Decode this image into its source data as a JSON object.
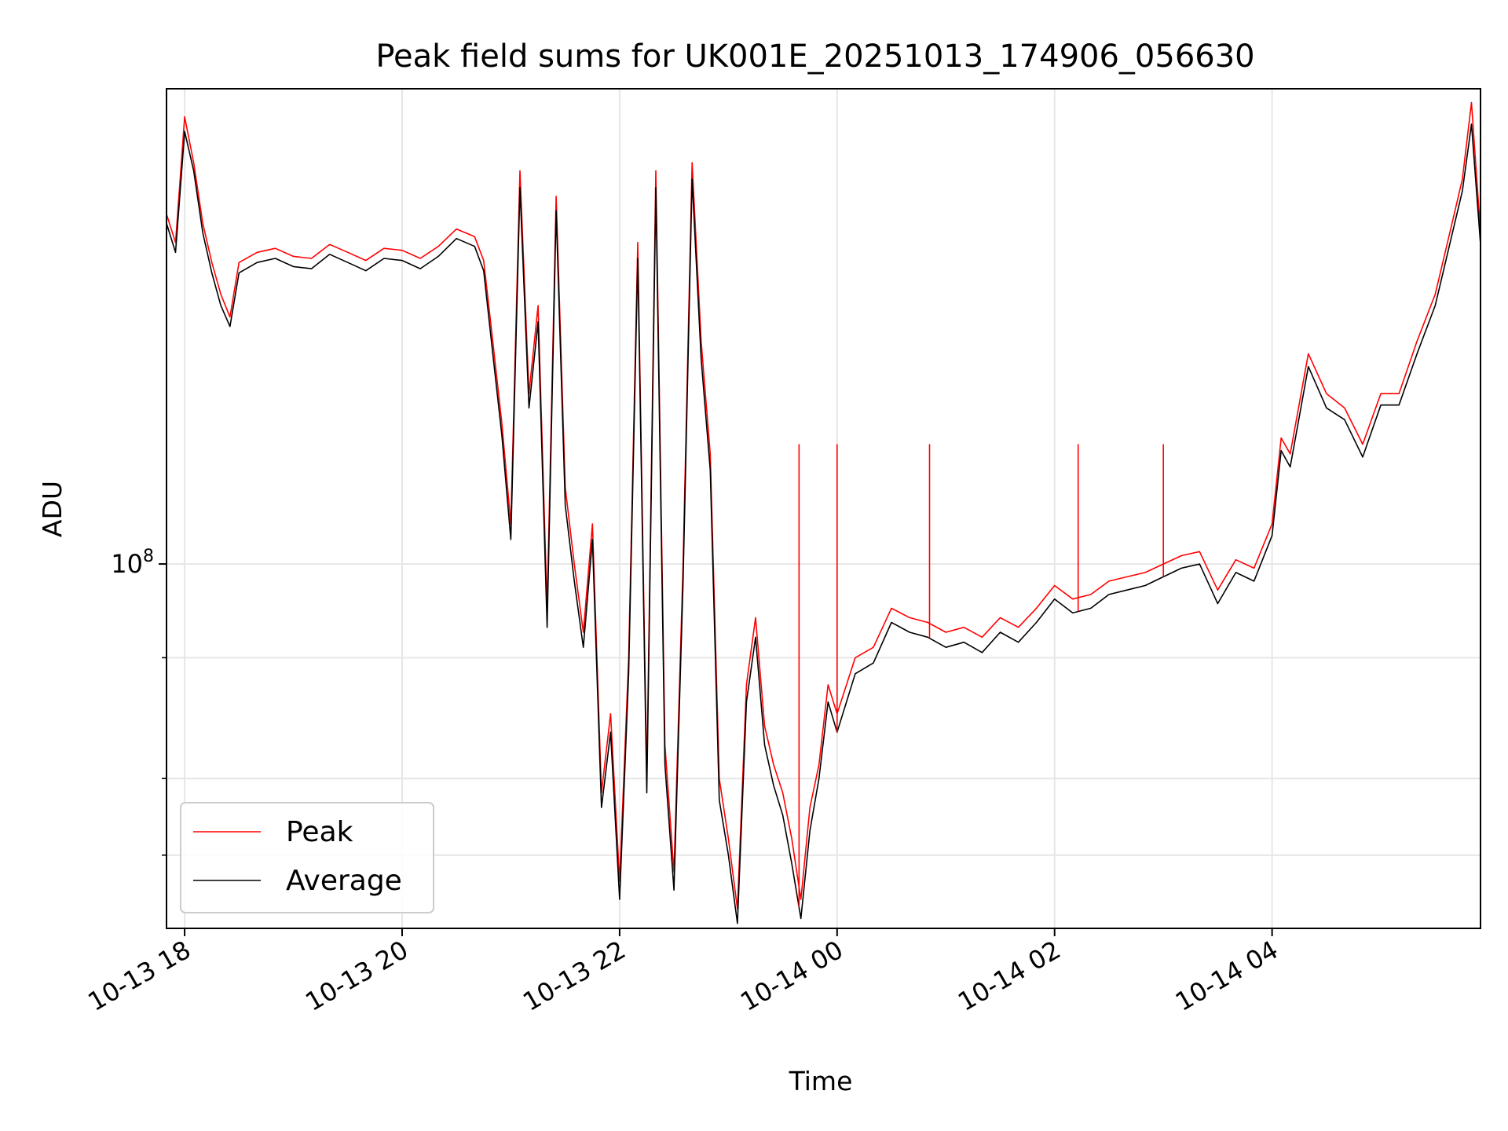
{
  "chart_data": {
    "type": "line",
    "title": "Peak field sums for UK001E_20251013_174906_056630",
    "xlabel": "Time",
    "ylabel": "ADU",
    "yscale": "log",
    "xlim": [
      "2025-10-13 17:50",
      "2025-10-14 05:55"
    ],
    "ylim": [
      42000000,
      310000000
    ],
    "grid": true,
    "legend_position": "lower-left",
    "x_tick_labels": [
      "10-13 18",
      "10-13 20",
      "10-13 22",
      "10-14 00",
      "10-14 02",
      "10-14 04"
    ],
    "x_ticks": [
      "2025-10-13 18:00",
      "2025-10-13 20:00",
      "2025-10-13 22:00",
      "2025-10-14 00:00",
      "2025-10-14 02:00",
      "2025-10-14 04:00"
    ],
    "y_tick_major": {
      "value": 100000000,
      "label_base": "10",
      "label_exp": "8"
    },
    "y_ticks_minor": [
      50000000,
      60000000,
      80000000
    ],
    "series_colors": {
      "peak": "#ff0000",
      "average": "#000000"
    },
    "x": [
      "2025-10-13 17:50",
      "2025-10-13 17:55",
      "2025-10-13 18:00",
      "2025-10-13 18:05",
      "2025-10-13 18:10",
      "2025-10-13 18:15",
      "2025-10-13 18:20",
      "2025-10-13 18:25",
      "2025-10-13 18:30",
      "2025-10-13 18:40",
      "2025-10-13 18:50",
      "2025-10-13 19:00",
      "2025-10-13 19:10",
      "2025-10-13 19:20",
      "2025-10-13 19:30",
      "2025-10-13 19:40",
      "2025-10-13 19:50",
      "2025-10-13 20:00",
      "2025-10-13 20:10",
      "2025-10-13 20:20",
      "2025-10-13 20:30",
      "2025-10-13 20:40",
      "2025-10-13 20:45",
      "2025-10-13 20:50",
      "2025-10-13 20:55",
      "2025-10-13 21:00",
      "2025-10-13 21:05",
      "2025-10-13 21:10",
      "2025-10-13 21:15",
      "2025-10-13 21:20",
      "2025-10-13 21:25",
      "2025-10-13 21:30",
      "2025-10-13 21:35",
      "2025-10-13 21:40",
      "2025-10-13 21:45",
      "2025-10-13 21:50",
      "2025-10-13 21:55",
      "2025-10-13 22:00",
      "2025-10-13 22:05",
      "2025-10-13 22:10",
      "2025-10-13 22:15",
      "2025-10-13 22:20",
      "2025-10-13 22:25",
      "2025-10-13 22:30",
      "2025-10-13 22:35",
      "2025-10-13 22:40",
      "2025-10-13 22:45",
      "2025-10-13 22:50",
      "2025-10-13 22:55",
      "2025-10-13 23:00",
      "2025-10-13 23:05",
      "2025-10-13 23:10",
      "2025-10-13 23:15",
      "2025-10-13 23:20",
      "2025-10-13 23:25",
      "2025-10-13 23:30",
      "2025-10-13 23:35",
      "2025-10-13 23:40",
      "2025-10-13 23:45",
      "2025-10-13 23:50",
      "2025-10-13 23:55",
      "2025-10-14 00:00",
      "2025-10-14 00:10",
      "2025-10-14 00:20",
      "2025-10-14 00:30",
      "2025-10-14 00:40",
      "2025-10-14 00:50",
      "2025-10-14 01:00",
      "2025-10-14 01:10",
      "2025-10-14 01:20",
      "2025-10-14 01:30",
      "2025-10-14 01:40",
      "2025-10-14 01:50",
      "2025-10-14 02:00",
      "2025-10-14 02:10",
      "2025-10-14 02:20",
      "2025-10-14 02:30",
      "2025-10-14 02:40",
      "2025-10-14 02:50",
      "2025-10-14 03:00",
      "2025-10-14 03:10",
      "2025-10-14 03:20",
      "2025-10-14 03:30",
      "2025-10-14 03:40",
      "2025-10-14 03:50",
      "2025-10-14 04:00",
      "2025-10-14 04:05",
      "2025-10-14 04:10",
      "2025-10-14 04:20",
      "2025-10-14 04:30",
      "2025-10-14 04:40",
      "2025-10-14 04:50",
      "2025-10-14 05:00",
      "2025-10-14 05:10",
      "2025-10-14 05:20",
      "2025-10-14 05:30",
      "2025-10-14 05:40",
      "2025-10-14 05:45",
      "2025-10-14 05:50",
      "2025-10-14 05:55"
    ],
    "series": [
      {
        "name": "Peak",
        "values": [
          230000000,
          215000000,
          290000000,
          260000000,
          225000000,
          205000000,
          190000000,
          180000000,
          205000000,
          210000000,
          212000000,
          208000000,
          207000000,
          214000000,
          210000000,
          206000000,
          212000000,
          211000000,
          207000000,
          213000000,
          222000000,
          218000000,
          206000000,
          170000000,
          140000000,
          110000000,
          255000000,
          150000000,
          185000000,
          90000000,
          240000000,
          120000000,
          100000000,
          85000000,
          110000000,
          58000000,
          70000000,
          47000000,
          80000000,
          215000000,
          60000000,
          255000000,
          65000000,
          48000000,
          100000000,
          260000000,
          170000000,
          130000000,
          60000000,
          52000000,
          44000000,
          75000000,
          88000000,
          68000000,
          62000000,
          58000000,
          52000000,
          45000000,
          56000000,
          62000000,
          75000000,
          70000000,
          80000000,
          82000000,
          90000000,
          88000000,
          87000000,
          85000000,
          86000000,
          84000000,
          88000000,
          86000000,
          90000000,
          95000000,
          92000000,
          93000000,
          96000000,
          97000000,
          98000000,
          100000000,
          102000000,
          103000000,
          94000000,
          101000000,
          99000000,
          110000000,
          135000000,
          130000000,
          165000000,
          150000000,
          145000000,
          133000000,
          150000000,
          150000000,
          170000000,
          190000000,
          228000000,
          250000000,
          300000000,
          220000000
        ]
      },
      {
        "name": "Average",
        "values": [
          225000000,
          210000000,
          280000000,
          255000000,
          220000000,
          200000000,
          185000000,
          176000000,
          200000000,
          205000000,
          207000000,
          203000000,
          202000000,
          209000000,
          205000000,
          201000000,
          207000000,
          206000000,
          202000000,
          208000000,
          217000000,
          213000000,
          201000000,
          165000000,
          136000000,
          106000000,
          245000000,
          145000000,
          178000000,
          86000000,
          232000000,
          115000000,
          96000000,
          82000000,
          106000000,
          56000000,
          67000000,
          45000000,
          77000000,
          207000000,
          58000000,
          245000000,
          62000000,
          46000000,
          96000000,
          250000000,
          163000000,
          125000000,
          57000000,
          50000000,
          42500000,
          72000000,
          84000000,
          65000000,
          59000000,
          55000000,
          49000000,
          43000000,
          53000000,
          60000000,
          72000000,
          67000000,
          77000000,
          79000000,
          87000000,
          85000000,
          84000000,
          82000000,
          83000000,
          81000000,
          85000000,
          83000000,
          87000000,
          92000000,
          89000000,
          90000000,
          93000000,
          94000000,
          95000000,
          97000000,
          99000000,
          100000000,
          91000000,
          98000000,
          96000000,
          107000000,
          131000000,
          126000000,
          160000000,
          145000000,
          141000000,
          129000000,
          146000000,
          146000000,
          165000000,
          185000000,
          222000000,
          243000000,
          285000000,
          214000000
        ]
      }
    ],
    "spikes_peak_only": [
      {
        "x": "2025-10-13 23:39",
        "y": 133000000
      },
      {
        "x": "2025-10-14 00:00",
        "y": 133000000
      },
      {
        "x": "2025-10-14 00:51",
        "y": 133000000
      },
      {
        "x": "2025-10-14 02:13",
        "y": 133000000
      },
      {
        "x": "2025-10-14 03:00",
        "y": 133000000
      }
    ]
  }
}
